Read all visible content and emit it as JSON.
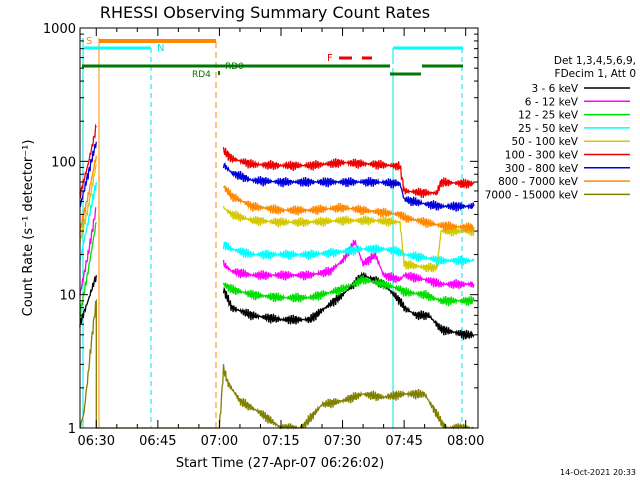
{
  "chart_data": {
    "type": "line",
    "title": "RHESSI Observing Summary Count Rates",
    "xlabel": "Start Time (27-Apr-07 06:26:02)",
    "ylabel": "Count Rate (s⁻¹ detector⁻¹)",
    "ylog": true,
    "ylim": [
      1,
      1000
    ],
    "xlim": [
      "06:26:02",
      "08:03:00"
    ],
    "x_ticks": [
      "06:30",
      "06:45",
      "07:00",
      "07:15",
      "07:30",
      "07:45",
      "08:00"
    ],
    "y_ticks": [
      "1",
      "10",
      "100",
      "1000"
    ],
    "legend": {
      "placement": "right",
      "header": [
        "Det 1,3,4,5,6,9,",
        "FDecim 1, Att 0"
      ],
      "entries": [
        {
          "label": "3 - 6 keV",
          "color": "#000000"
        },
        {
          "label": "6 - 12 keV",
          "color": "#ff00ff"
        },
        {
          "label": "12 - 25 keV",
          "color": "#00dd00"
        },
        {
          "label": "25 - 50 keV",
          "color": "#00ffff"
        },
        {
          "label": "50 - 100 keV",
          "color": "#d4c800"
        },
        {
          "label": "100 - 300 keV",
          "color": "#ee0000"
        },
        {
          "label": "300 - 800 keV",
          "color": "#0000dd"
        },
        {
          "label": "800 - 7000 keV",
          "color": "#ff8800"
        },
        {
          "label": "7000 - 15000 keV",
          "color": "#808000"
        }
      ]
    },
    "flags": {
      "S": {
        "label": "S",
        "color": "#ff8800"
      },
      "N": {
        "label": "N",
        "color": "#00ffff"
      },
      "RD0": {
        "label": "RD0",
        "color": "#007700"
      },
      "RD4": {
        "label": "RD4",
        "color": "#007700"
      },
      "F": {
        "label": "F",
        "color": "#ee0000"
      }
    },
    "series": [
      {
        "name": "3 - 6 keV",
        "color": "#000000",
        "x": [
          "06:26",
          "06:28",
          "06:30",
          "07:01",
          "07:03",
          "07:08",
          "07:15",
          "07:22",
          "07:30",
          "07:35",
          "07:40",
          "07:44",
          "07:45",
          "07:48",
          "07:51",
          "07:54",
          "08:00",
          "08:02"
        ],
        "y": [
          6,
          9,
          14,
          11,
          8,
          7,
          6.5,
          6.5,
          10,
          14,
          12,
          9,
          8,
          7,
          7,
          5.5,
          5,
          5
        ]
      },
      {
        "name": "6 - 12 keV",
        "color": "#ff00ff",
        "x": [
          "06:26",
          "06:28",
          "06:30",
          "07:01",
          "07:03",
          "07:08",
          "07:15",
          "07:22",
          "07:27",
          "07:30",
          "07:33",
          "07:35",
          "07:38",
          "07:40",
          "07:44",
          "07:45",
          "07:50",
          "07:54",
          "08:00",
          "08:02"
        ],
        "y": [
          10,
          20,
          45,
          17,
          15,
          14,
          14,
          14,
          15,
          18,
          25,
          17,
          20,
          14,
          13,
          14,
          13,
          12,
          12,
          12
        ]
      },
      {
        "name": "12 - 25 keV",
        "color": "#00dd00",
        "x": [
          "06:26",
          "06:28",
          "06:30",
          "07:01",
          "07:03",
          "07:08",
          "07:15",
          "07:22",
          "07:30",
          "07:35",
          "07:40",
          "07:44",
          "07:45",
          "07:50",
          "07:54",
          "08:00",
          "08:02"
        ],
        "y": [
          7,
          15,
          35,
          12,
          11,
          10,
          9.5,
          9.5,
          11,
          13,
          12,
          11,
          10.5,
          10,
          9,
          9,
          9
        ]
      },
      {
        "name": "25 - 50 keV",
        "color": "#00ffff",
        "x": [
          "06:26",
          "06:28",
          "06:30",
          "07:01",
          "07:03",
          "07:08",
          "07:15",
          "07:22",
          "07:30",
          "07:35",
          "07:40",
          "07:44",
          "07:45",
          "07:50",
          "07:54",
          "08:00",
          "08:02"
        ],
        "y": [
          18,
          35,
          70,
          24,
          22,
          20,
          20,
          20,
          21,
          22,
          22,
          21,
          20,
          19,
          18,
          18,
          18
        ]
      },
      {
        "name": "50 - 100 keV",
        "color": "#d4c800",
        "x": [
          "06:26",
          "06:28",
          "06:30",
          "07:01",
          "07:03",
          "07:08",
          "07:15",
          "07:22",
          "07:30",
          "07:38",
          "07:44",
          "07:45",
          "07:50",
          "07:53",
          "07:54",
          "08:00",
          "08:02"
        ],
        "y": [
          25,
          45,
          95,
          45,
          40,
          36,
          35,
          35,
          36,
          36,
          35,
          17,
          16,
          16,
          30,
          30,
          30
        ]
      },
      {
        "name": "100 - 300 keV",
        "color": "#ee0000",
        "x": [
          "06:26",
          "06:28",
          "06:30",
          "07:01",
          "07:03",
          "07:08",
          "07:15",
          "07:22",
          "07:30",
          "07:38",
          "07:44",
          "07:45",
          "07:50",
          "07:53",
          "07:54",
          "08:00",
          "08:02"
        ],
        "y": [
          55,
          95,
          180,
          120,
          105,
          95,
          93,
          93,
          98,
          95,
          92,
          60,
          58,
          58,
          70,
          68,
          68
        ]
      },
      {
        "name": "300 - 800 keV",
        "color": "#0000dd",
        "x": [
          "06:26",
          "06:28",
          "06:30",
          "07:01",
          "07:03",
          "07:08",
          "07:15",
          "07:22",
          "07:30",
          "07:38",
          "07:44",
          "07:45",
          "07:50",
          "07:54",
          "08:00",
          "08:02"
        ],
        "y": [
          45,
          80,
          140,
          95,
          82,
          72,
          70,
          70,
          70,
          70,
          68,
          52,
          48,
          46,
          46,
          46
        ]
      },
      {
        "name": "800 - 7000 keV",
        "color": "#ff8800",
        "x": [
          "06:26",
          "06:28",
          "06:30",
          "07:01",
          "07:03",
          "07:08",
          "07:15",
          "07:22",
          "07:30",
          "07:38",
          "07:44",
          "07:45",
          "07:50",
          "07:54",
          "08:00",
          "08:02"
        ],
        "y": [
          30,
          55,
          110,
          65,
          55,
          46,
          43,
          43,
          45,
          42,
          40,
          38,
          35,
          33,
          32,
          32
        ]
      },
      {
        "name": "7000 - 15000 keV",
        "color": "#808000",
        "x": [
          "06:26",
          "06:27",
          "06:28",
          "06:29",
          "06:30",
          "07:00",
          "07:01",
          "07:02",
          "07:05",
          "07:10",
          "07:15",
          "07:20",
          "07:25",
          "07:30",
          "07:35",
          "07:40",
          "07:45",
          "07:50",
          "07:55",
          "08:00",
          "08:02"
        ],
        "y": [
          1,
          1.3,
          2.5,
          5,
          9,
          1,
          2.8,
          2.2,
          1.6,
          1.3,
          1,
          1,
          1.5,
          1.6,
          1.8,
          1.7,
          1.8,
          1.8,
          1,
          1,
          1
        ]
      }
    ]
  },
  "footer": {
    "timestamp": "14-Oct-2021 20:33"
  }
}
